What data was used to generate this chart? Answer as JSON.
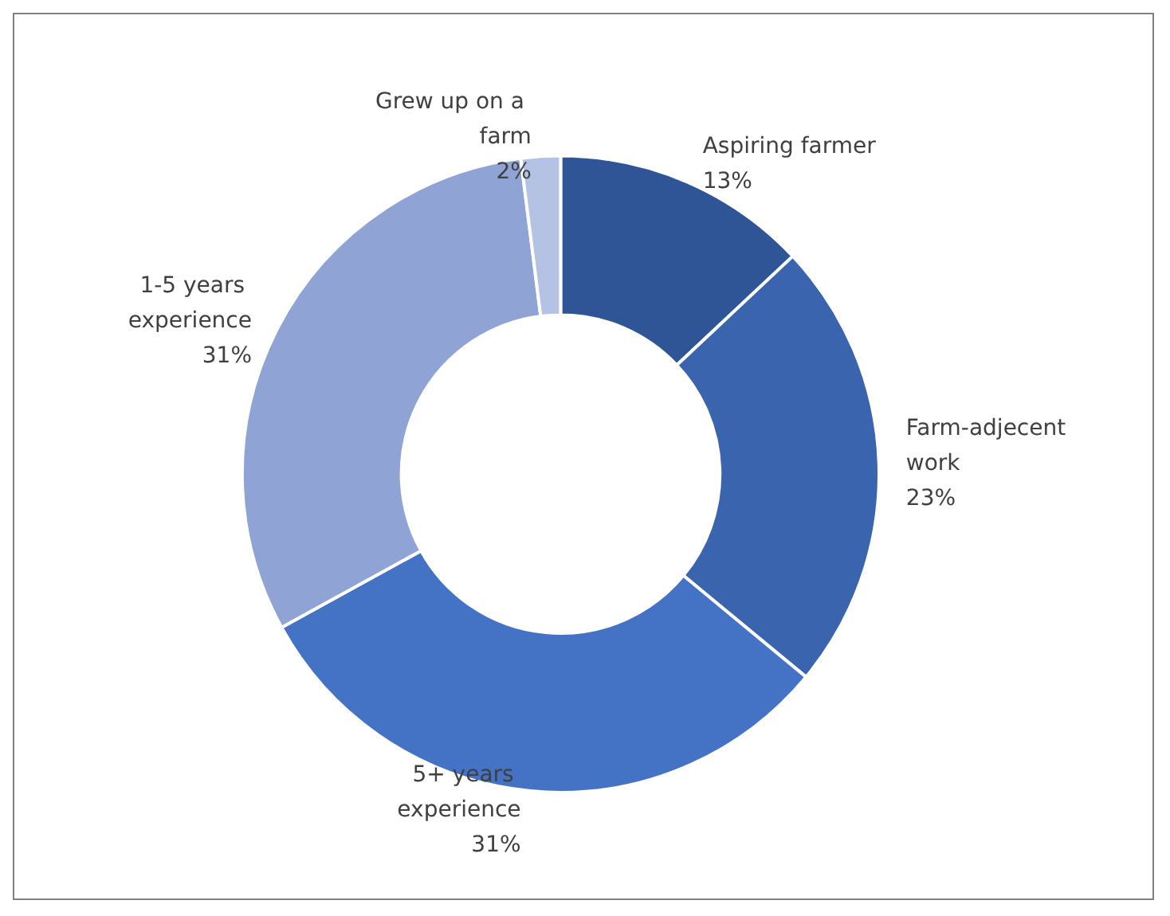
{
  "chart_data": {
    "type": "donut",
    "categories": [
      "Aspiring farmer",
      "Farm-adjecent work",
      "5+ years experience",
      "1-5 years experience",
      "Grew up on a farm"
    ],
    "values": [
      13,
      23,
      31,
      31,
      2
    ],
    "colors": [
      "#2f5597",
      "#3a64ae",
      "#4472c4",
      "#8fa3d5",
      "#b4c2e4"
    ],
    "value_labels": [
      "13%",
      "23%",
      "31%",
      "31%",
      "2%"
    ],
    "legend": false
  }
}
